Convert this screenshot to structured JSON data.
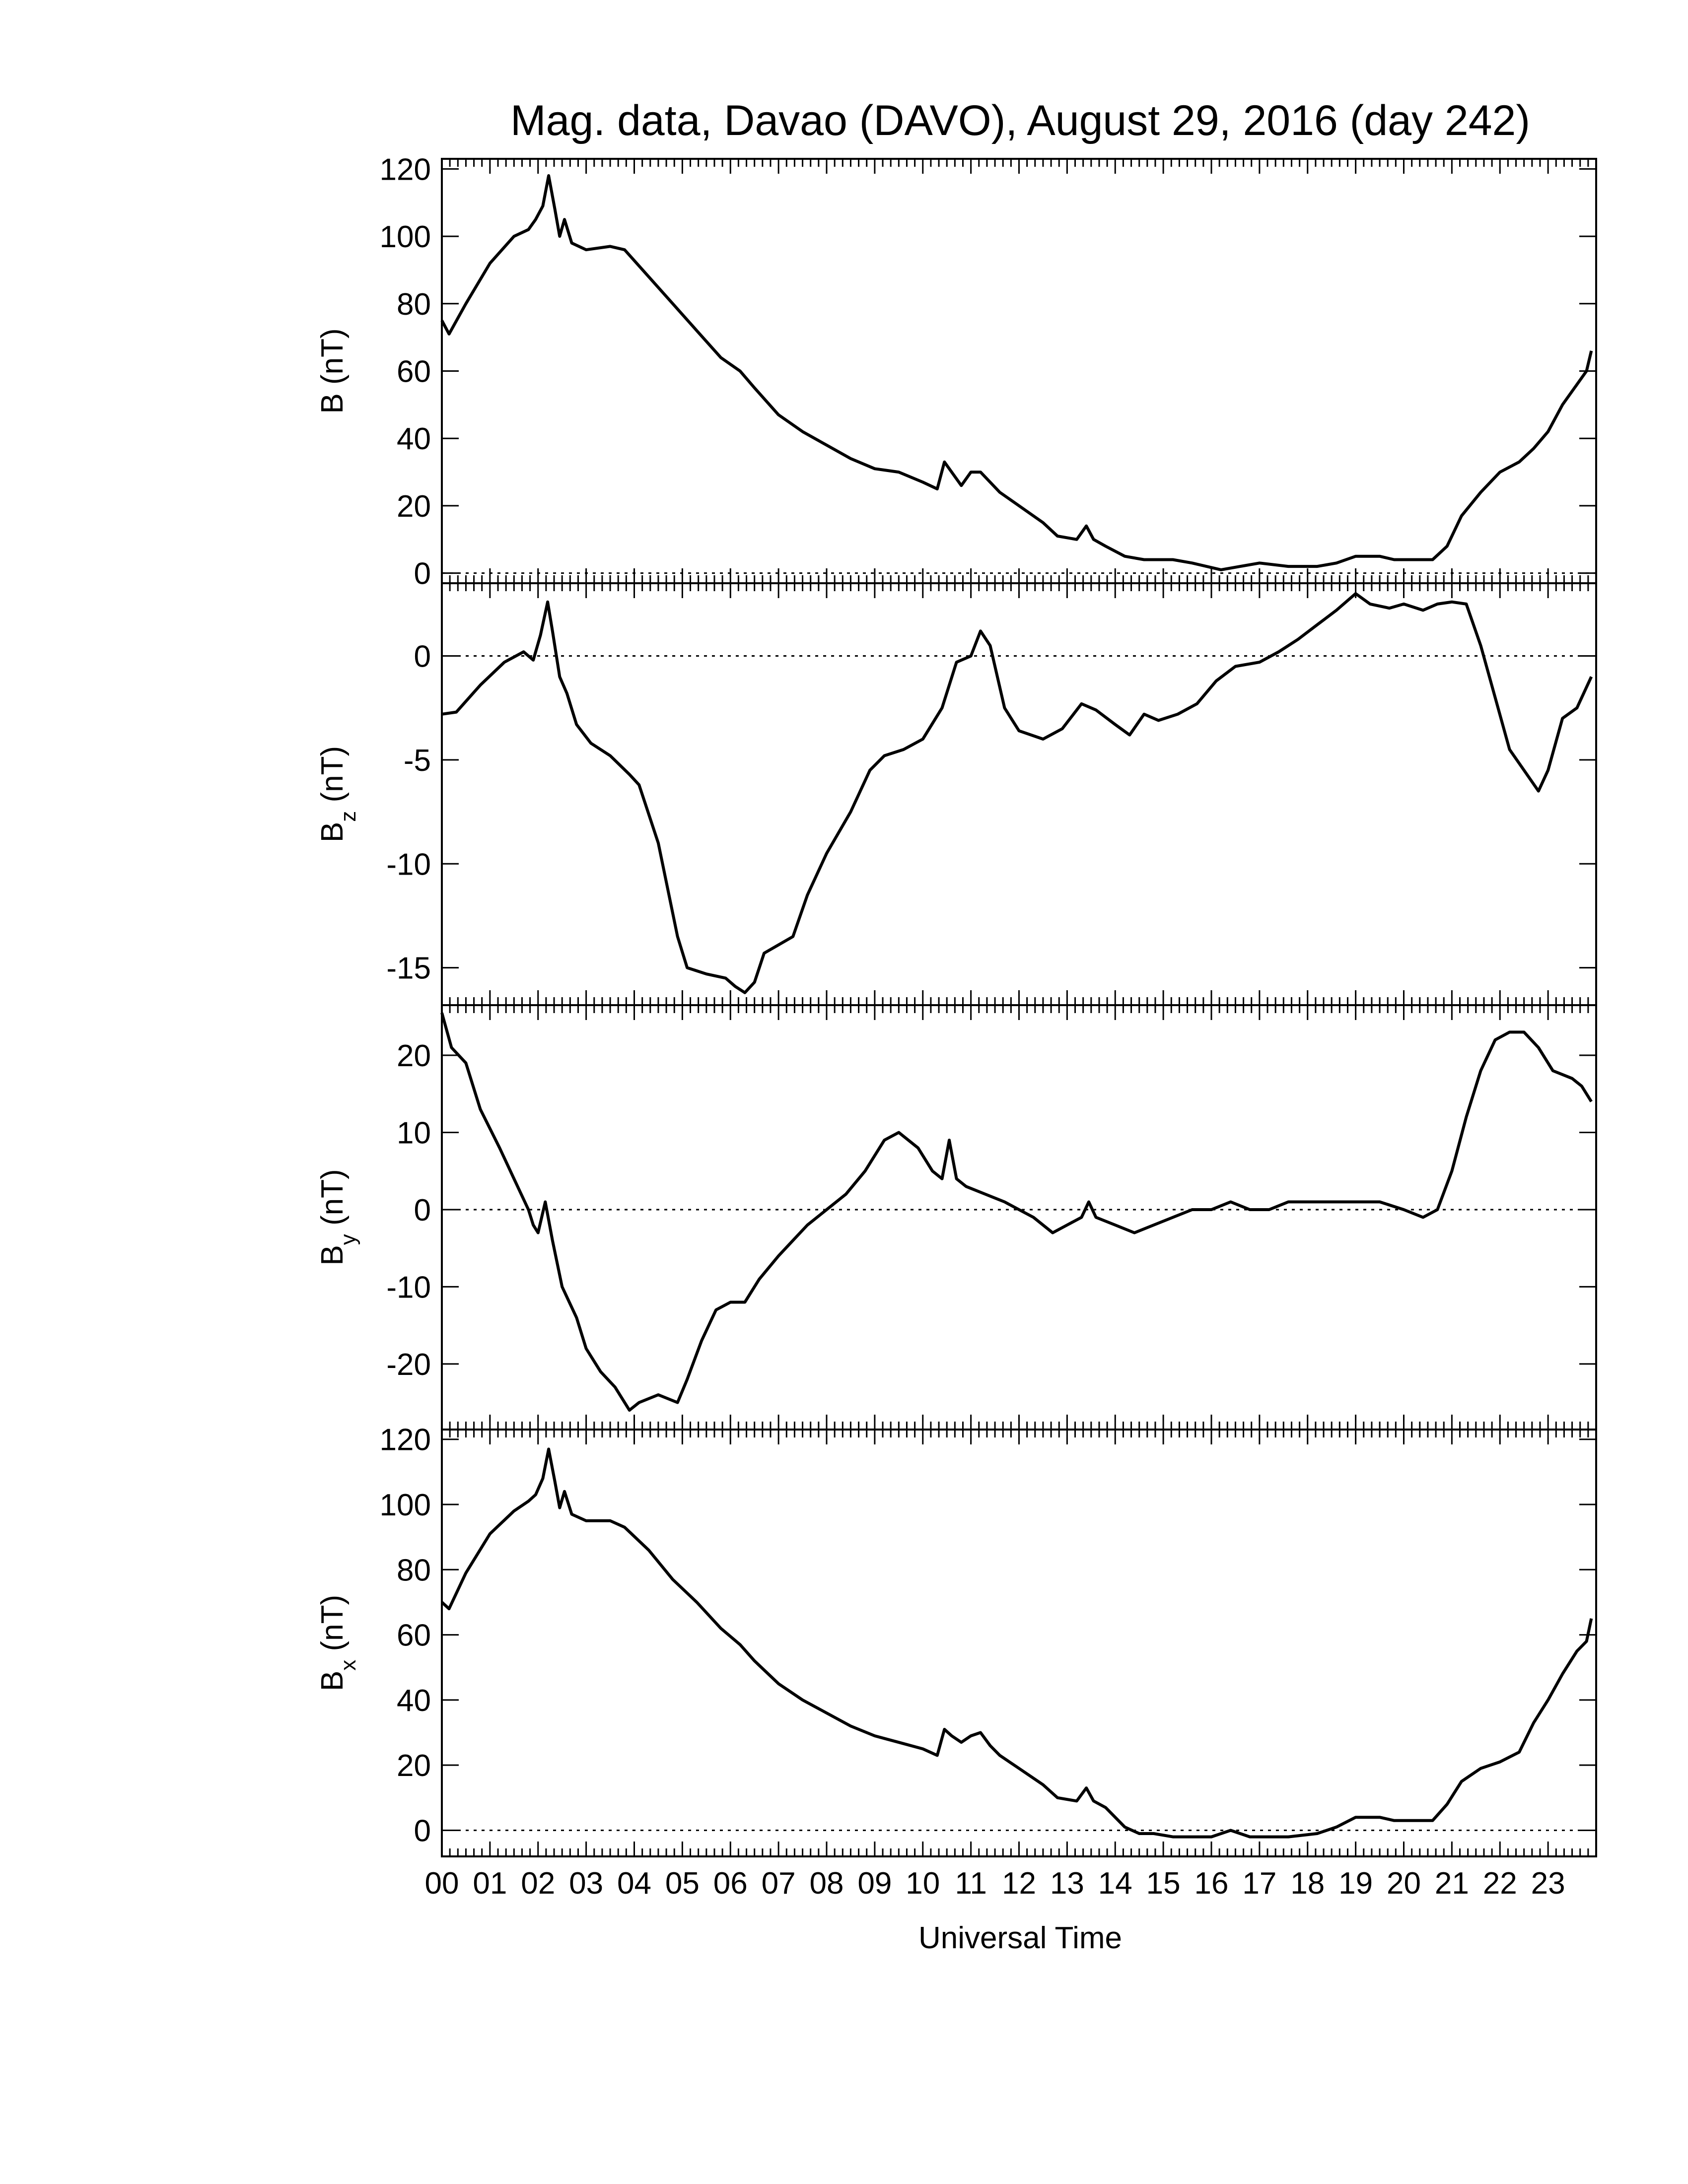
{
  "title": "Mag. data, Davao (DAVO), August 29, 2016 (day 242)",
  "xlabel": "Universal Time",
  "x_ticks": [
    "00",
    "01",
    "02",
    "03",
    "04",
    "05",
    "06",
    "07",
    "08",
    "09",
    "10",
    "11",
    "12",
    "13",
    "14",
    "15",
    "16",
    "17",
    "18",
    "19",
    "20",
    "21",
    "22",
    "23"
  ],
  "colors": {
    "line": "#000000",
    "zero_line": "#000000",
    "background": "#ffffff"
  },
  "chart_data": [
    {
      "type": "line",
      "panel": "B",
      "ylabel": {
        "main": "B",
        "sub": "",
        "unit": "(nT)"
      },
      "ylim": [
        -3,
        123
      ],
      "yticks": [
        0,
        20,
        40,
        60,
        80,
        100,
        120
      ],
      "zero_line": true,
      "x_unit": "hours UT",
      "xlim": [
        0,
        24
      ],
      "points": [
        [
          0.0,
          75
        ],
        [
          0.15,
          71
        ],
        [
          0.5,
          80
        ],
        [
          1.0,
          92
        ],
        [
          1.5,
          100
        ],
        [
          1.8,
          102
        ],
        [
          1.95,
          105
        ],
        [
          2.1,
          109
        ],
        [
          2.22,
          118
        ],
        [
          2.35,
          108
        ],
        [
          2.45,
          100
        ],
        [
          2.55,
          105
        ],
        [
          2.7,
          98
        ],
        [
          3.0,
          96
        ],
        [
          3.5,
          97
        ],
        [
          3.8,
          96
        ],
        [
          4.3,
          88
        ],
        [
          4.8,
          80
        ],
        [
          5.3,
          72
        ],
        [
          5.8,
          64
        ],
        [
          6.2,
          60
        ],
        [
          6.5,
          55
        ],
        [
          7.0,
          47
        ],
        [
          7.5,
          42
        ],
        [
          8.0,
          38
        ],
        [
          8.5,
          34
        ],
        [
          9.0,
          31
        ],
        [
          9.5,
          30
        ],
        [
          10.0,
          27
        ],
        [
          10.3,
          25
        ],
        [
          10.45,
          33
        ],
        [
          10.6,
          30
        ],
        [
          10.8,
          26
        ],
        [
          11.0,
          30
        ],
        [
          11.2,
          30
        ],
        [
          11.4,
          27
        ],
        [
          11.6,
          24
        ],
        [
          12.0,
          20
        ],
        [
          12.5,
          15
        ],
        [
          12.8,
          11
        ],
        [
          13.2,
          10
        ],
        [
          13.4,
          14
        ],
        [
          13.55,
          10
        ],
        [
          13.8,
          8
        ],
        [
          14.2,
          5
        ],
        [
          14.6,
          4
        ],
        [
          15.2,
          4
        ],
        [
          15.6,
          3
        ],
        [
          16.2,
          1
        ],
        [
          16.6,
          2
        ],
        [
          17.0,
          3
        ],
        [
          17.6,
          2
        ],
        [
          18.2,
          2
        ],
        [
          18.6,
          3
        ],
        [
          19.0,
          5
        ],
        [
          19.5,
          5
        ],
        [
          19.8,
          4
        ],
        [
          20.2,
          4
        ],
        [
          20.6,
          4
        ],
        [
          20.9,
          8
        ],
        [
          21.2,
          17
        ],
        [
          21.6,
          24
        ],
        [
          22.0,
          30
        ],
        [
          22.4,
          33
        ],
        [
          22.7,
          37
        ],
        [
          23.0,
          42
        ],
        [
          23.3,
          50
        ],
        [
          23.6,
          56
        ],
        [
          23.8,
          60
        ],
        [
          23.9,
          66
        ]
      ]
    },
    {
      "type": "line",
      "panel": "Bz",
      "ylabel": {
        "main": "B",
        "sub": "z",
        "unit": "(nT)"
      },
      "ylim": [
        -16.8,
        3.5
      ],
      "yticks": [
        0,
        -5,
        -10,
        -15
      ],
      "zero_line": true,
      "x_unit": "hours UT",
      "xlim": [
        0,
        24
      ],
      "points": [
        [
          0.0,
          -2.8
        ],
        [
          0.3,
          -2.7
        ],
        [
          0.8,
          -1.4
        ],
        [
          1.3,
          -0.3
        ],
        [
          1.7,
          0.2
        ],
        [
          1.9,
          -0.2
        ],
        [
          2.05,
          1.0
        ],
        [
          2.2,
          2.6
        ],
        [
          2.3,
          1.2
        ],
        [
          2.45,
          -1.0
        ],
        [
          2.6,
          -1.8
        ],
        [
          2.8,
          -3.3
        ],
        [
          3.1,
          -4.2
        ],
        [
          3.5,
          -4.8
        ],
        [
          3.9,
          -5.7
        ],
        [
          4.1,
          -6.2
        ],
        [
          4.5,
          -9.0
        ],
        [
          4.9,
          -13.5
        ],
        [
          5.1,
          -15.0
        ],
        [
          5.5,
          -15.3
        ],
        [
          5.9,
          -15.5
        ],
        [
          6.1,
          -15.9
        ],
        [
          6.3,
          -16.2
        ],
        [
          6.5,
          -15.7
        ],
        [
          6.7,
          -14.3
        ],
        [
          7.0,
          -13.9
        ],
        [
          7.3,
          -13.5
        ],
        [
          7.6,
          -11.5
        ],
        [
          8.0,
          -9.5
        ],
        [
          8.5,
          -7.5
        ],
        [
          8.9,
          -5.5
        ],
        [
          9.2,
          -4.8
        ],
        [
          9.6,
          -4.5
        ],
        [
          10.0,
          -4.0
        ],
        [
          10.4,
          -2.5
        ],
        [
          10.7,
          -0.3
        ],
        [
          11.0,
          0.0
        ],
        [
          11.2,
          1.2
        ],
        [
          11.4,
          0.5
        ],
        [
          11.7,
          -2.5
        ],
        [
          12.0,
          -3.6
        ],
        [
          12.5,
          -4.0
        ],
        [
          12.9,
          -3.5
        ],
        [
          13.3,
          -2.3
        ],
        [
          13.6,
          -2.6
        ],
        [
          14.0,
          -3.3
        ],
        [
          14.3,
          -3.8
        ],
        [
          14.6,
          -2.8
        ],
        [
          14.9,
          -3.1
        ],
        [
          15.3,
          -2.8
        ],
        [
          15.7,
          -2.3
        ],
        [
          16.1,
          -1.2
        ],
        [
          16.5,
          -0.5
        ],
        [
          17.0,
          -0.3
        ],
        [
          17.4,
          0.2
        ],
        [
          17.8,
          0.8
        ],
        [
          18.2,
          1.5
        ],
        [
          18.6,
          2.2
        ],
        [
          19.0,
          3.0
        ],
        [
          19.3,
          2.5
        ],
        [
          19.7,
          2.3
        ],
        [
          20.0,
          2.5
        ],
        [
          20.4,
          2.2
        ],
        [
          20.7,
          2.5
        ],
        [
          21.0,
          2.6
        ],
        [
          21.3,
          2.5
        ],
        [
          21.6,
          0.5
        ],
        [
          21.9,
          -2.0
        ],
        [
          22.2,
          -4.5
        ],
        [
          22.5,
          -5.5
        ],
        [
          22.8,
          -6.5
        ],
        [
          23.0,
          -5.5
        ],
        [
          23.3,
          -3.0
        ],
        [
          23.6,
          -2.5
        ],
        [
          23.9,
          -1.0
        ]
      ]
    },
    {
      "type": "line",
      "panel": "By",
      "ylabel": {
        "main": "B",
        "sub": "y",
        "unit": "(nT)"
      },
      "ylim": [
        -28.5,
        26.5
      ],
      "yticks": [
        20,
        10,
        0,
        -10,
        -20
      ],
      "zero_line": true,
      "x_unit": "hours UT",
      "xlim": [
        0,
        24
      ],
      "points": [
        [
          0.0,
          25.5
        ],
        [
          0.2,
          21
        ],
        [
          0.5,
          19
        ],
        [
          0.8,
          13
        ],
        [
          1.2,
          8
        ],
        [
          1.5,
          4
        ],
        [
          1.8,
          0
        ],
        [
          1.9,
          -2
        ],
        [
          2.0,
          -3
        ],
        [
          2.15,
          1
        ],
        [
          2.3,
          -4
        ],
        [
          2.5,
          -10
        ],
        [
          2.8,
          -14
        ],
        [
          3.0,
          -18
        ],
        [
          3.3,
          -21
        ],
        [
          3.6,
          -23
        ],
        [
          3.9,
          -26
        ],
        [
          4.1,
          -25
        ],
        [
          4.5,
          -24
        ],
        [
          4.9,
          -25
        ],
        [
          5.1,
          -22
        ],
        [
          5.4,
          -17
        ],
        [
          5.7,
          -13
        ],
        [
          6.0,
          -12
        ],
        [
          6.3,
          -12
        ],
        [
          6.6,
          -9
        ],
        [
          7.0,
          -6
        ],
        [
          7.3,
          -4
        ],
        [
          7.6,
          -2
        ],
        [
          8.0,
          0
        ],
        [
          8.4,
          2
        ],
        [
          8.8,
          5
        ],
        [
          9.2,
          9
        ],
        [
          9.5,
          10
        ],
        [
          9.9,
          8
        ],
        [
          10.2,
          5
        ],
        [
          10.4,
          4
        ],
        [
          10.55,
          9
        ],
        [
          10.7,
          4
        ],
        [
          10.9,
          3
        ],
        [
          11.3,
          2
        ],
        [
          11.7,
          1
        ],
        [
          12.0,
          0
        ],
        [
          12.3,
          -1
        ],
        [
          12.7,
          -3
        ],
        [
          13.0,
          -2
        ],
        [
          13.3,
          -1
        ],
        [
          13.45,
          1
        ],
        [
          13.6,
          -1
        ],
        [
          14.0,
          -2
        ],
        [
          14.4,
          -3
        ],
        [
          14.8,
          -2
        ],
        [
          15.2,
          -1
        ],
        [
          15.6,
          0
        ],
        [
          16.0,
          0
        ],
        [
          16.4,
          1
        ],
        [
          16.8,
          0
        ],
        [
          17.2,
          0
        ],
        [
          17.6,
          1
        ],
        [
          18.0,
          1
        ],
        [
          18.5,
          1
        ],
        [
          19.0,
          1
        ],
        [
          19.5,
          1
        ],
        [
          20.0,
          0
        ],
        [
          20.4,
          -1
        ],
        [
          20.7,
          0
        ],
        [
          21.0,
          5
        ],
        [
          21.3,
          12
        ],
        [
          21.6,
          18
        ],
        [
          21.9,
          22
        ],
        [
          22.2,
          23
        ],
        [
          22.5,
          23
        ],
        [
          22.8,
          21
        ],
        [
          23.1,
          18
        ],
        [
          23.5,
          17
        ],
        [
          23.7,
          16
        ],
        [
          23.9,
          14
        ]
      ]
    },
    {
      "type": "line",
      "panel": "Bx",
      "ylabel": {
        "main": "B",
        "sub": "x",
        "unit": "(nT)"
      },
      "ylim": [
        -8,
        123
      ],
      "yticks": [
        0,
        20,
        40,
        60,
        80,
        100,
        120
      ],
      "zero_line": true,
      "x_unit": "hours UT",
      "xlim": [
        0,
        24
      ],
      "points": [
        [
          0.0,
          70
        ],
        [
          0.15,
          68
        ],
        [
          0.5,
          79
        ],
        [
          1.0,
          91
        ],
        [
          1.5,
          98
        ],
        [
          1.8,
          101
        ],
        [
          1.95,
          103
        ],
        [
          2.1,
          108
        ],
        [
          2.22,
          117
        ],
        [
          2.35,
          107
        ],
        [
          2.45,
          99
        ],
        [
          2.55,
          104
        ],
        [
          2.7,
          97
        ],
        [
          3.0,
          95
        ],
        [
          3.5,
          95
        ],
        [
          3.8,
          93
        ],
        [
          4.3,
          86
        ],
        [
          4.8,
          77
        ],
        [
          5.3,
          70
        ],
        [
          5.8,
          62
        ],
        [
          6.2,
          57
        ],
        [
          6.5,
          52
        ],
        [
          7.0,
          45
        ],
        [
          7.5,
          40
        ],
        [
          8.0,
          36
        ],
        [
          8.5,
          32
        ],
        [
          9.0,
          29
        ],
        [
          9.5,
          27
        ],
        [
          10.0,
          25
        ],
        [
          10.3,
          23
        ],
        [
          10.45,
          31
        ],
        [
          10.6,
          29
        ],
        [
          10.8,
          27
        ],
        [
          11.0,
          29
        ],
        [
          11.2,
          30
        ],
        [
          11.4,
          26
        ],
        [
          11.6,
          23
        ],
        [
          12.0,
          19
        ],
        [
          12.5,
          14
        ],
        [
          12.8,
          10
        ],
        [
          13.2,
          9
        ],
        [
          13.4,
          13
        ],
        [
          13.55,
          9
        ],
        [
          13.8,
          7
        ],
        [
          14.2,
          1
        ],
        [
          14.5,
          -1
        ],
        [
          14.8,
          -1
        ],
        [
          15.2,
          -2
        ],
        [
          15.6,
          -2
        ],
        [
          16.0,
          -2
        ],
        [
          16.4,
          0
        ],
        [
          16.8,
          -2
        ],
        [
          17.2,
          -2
        ],
        [
          17.6,
          -2
        ],
        [
          18.2,
          -1
        ],
        [
          18.6,
          1
        ],
        [
          19.0,
          4
        ],
        [
          19.5,
          4
        ],
        [
          19.8,
          3
        ],
        [
          20.2,
          3
        ],
        [
          20.6,
          3
        ],
        [
          20.9,
          8
        ],
        [
          21.2,
          15
        ],
        [
          21.6,
          19
        ],
        [
          22.0,
          21
        ],
        [
          22.4,
          24
        ],
        [
          22.7,
          33
        ],
        [
          23.0,
          40
        ],
        [
          23.3,
          48
        ],
        [
          23.6,
          55
        ],
        [
          23.8,
          58
        ],
        [
          23.9,
          65
        ]
      ]
    }
  ]
}
